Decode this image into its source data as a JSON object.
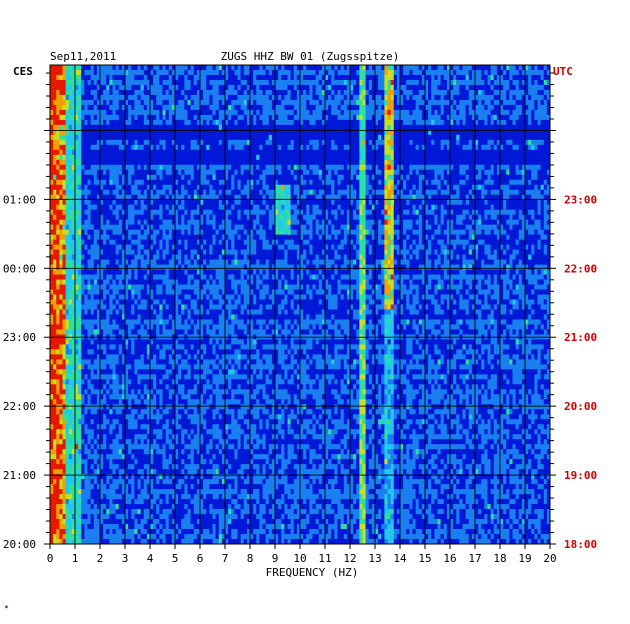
{
  "header": {
    "date": "Sep11,2011",
    "station": "ZUGS HHZ BW 01 (Zugsspitze)"
  },
  "left_zone": "CES",
  "right_zone": "UTC",
  "colors": {
    "left_labels": "#000000",
    "right_labels": "#cc0000",
    "background": "#1414b4",
    "grid": "#000000"
  },
  "chart_data": {
    "type": "heatmap",
    "title": "ZUGS HHZ BW 01 (Zugsspitze)",
    "xlabel": "FREQUENCY (HZ)",
    "ylabel": "",
    "xlim": [
      0,
      20
    ],
    "x_ticks": [
      "0",
      "1",
      "2",
      "3",
      "4",
      "5",
      "6",
      "7",
      "8",
      "9",
      "10",
      "11",
      "12",
      "13",
      "14",
      "15",
      "16",
      "17",
      "18",
      "19",
      "20"
    ],
    "y_ticks_left": [
      "01:00",
      "00:00",
      "23:00",
      "22:00",
      "21:00",
      "20:00"
    ],
    "y_ticks_right": [
      "23:00",
      "22:00",
      "21:00",
      "20:00",
      "19:00",
      "18:00"
    ],
    "ylim_utc_hours": [
      18,
      24.95
    ],
    "colormap": [
      "#0000a0",
      "#0018d8",
      "#1a7ff0",
      "#22c8ee",
      "#2ee0a0",
      "#c8e020",
      "#f0a000",
      "#e81800"
    ],
    "energy_features": [
      {
        "frequency_hz": [
          0,
          0.6
        ],
        "level": "very high (red/yellow)",
        "note": "persistent low-frequency band"
      },
      {
        "frequency_hz": 12.5,
        "level": "medium (cyan/white)",
        "note": "narrow persistent line"
      },
      {
        "frequency_hz": 13.6,
        "level": "medium-high (yellow/cyan)",
        "note": "persistent line, strongest 21:30-23:30 UTC"
      },
      {
        "frequency_hz": [
          9,
          9.6
        ],
        "level": "medium (cyan)",
        "note": "band near 22:30-23:00 UTC"
      }
    ],
    "grid": true,
    "legend": "none"
  }
}
